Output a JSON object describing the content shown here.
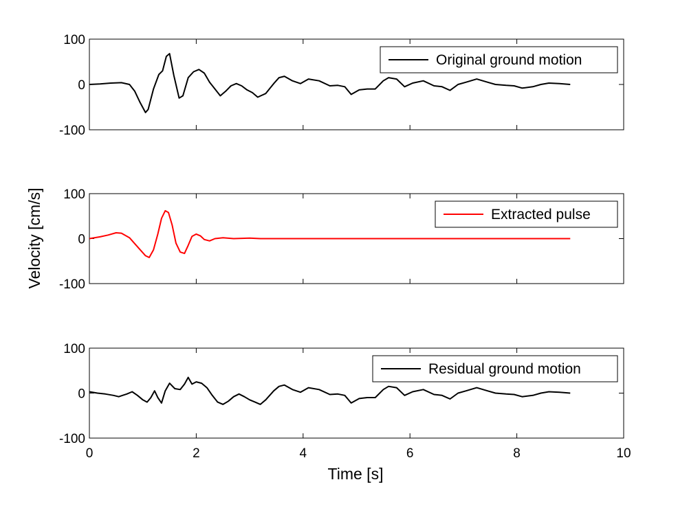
{
  "chart_data": {
    "type": "line",
    "xlabel": "Time [s]",
    "ylabel": "Velocity [cm/s]",
    "xlim": [
      0,
      10
    ],
    "xticks": [
      0,
      2,
      4,
      6,
      8,
      10
    ],
    "grid": false,
    "legend_position": "top-right",
    "panels": [
      {
        "ylim": [
          -100,
          100
        ],
        "yticks": [
          -100,
          0,
          100
        ],
        "series": [
          {
            "name": "Original ground motion",
            "color": "#000000",
            "x": [
              0,
              0.2,
              0.4,
              0.6,
              0.75,
              0.85,
              0.95,
              1.05,
              1.1,
              1.2,
              1.3,
              1.37,
              1.44,
              1.5,
              1.58,
              1.68,
              1.75,
              1.85,
              1.95,
              2.05,
              2.15,
              2.25,
              2.35,
              2.45,
              2.55,
              2.65,
              2.75,
              2.85,
              2.95,
              3.05,
              3.15,
              3.3,
              3.45,
              3.55,
              3.65,
              3.8,
              3.95,
              4.1,
              4.3,
              4.5,
              4.65,
              4.78,
              4.9,
              5.05,
              5.2,
              5.35,
              5.5,
              5.6,
              5.75,
              5.9,
              6.05,
              6.25,
              6.45,
              6.6,
              6.75,
              6.9,
              7.05,
              7.25,
              7.45,
              7.6,
              7.8,
              7.95,
              8.1,
              8.3,
              8.45,
              8.6,
              8.8,
              9.0
            ],
            "y": [
              0,
              1,
              3,
              4,
              0,
              -15,
              -40,
              -62,
              -55,
              -10,
              22,
              30,
              62,
              68,
              20,
              -30,
              -25,
              15,
              28,
              33,
              25,
              5,
              -10,
              -25,
              -15,
              -3,
              2,
              -3,
              -12,
              -18,
              -28,
              -20,
              2,
              15,
              18,
              8,
              2,
              12,
              8,
              -3,
              -2,
              -5,
              -22,
              -12,
              -10,
              -10,
              8,
              15,
              12,
              -5,
              3,
              8,
              -3,
              -5,
              -13,
              0,
              5,
              12,
              5,
              0,
              -2,
              -3,
              -8,
              -5,
              0,
              3,
              2,
              0
            ]
          }
        ]
      },
      {
        "ylim": [
          -100,
          100
        ],
        "yticks": [
          -100,
          0,
          100
        ],
        "series": [
          {
            "name": "Extracted pulse",
            "color": "#ff0000",
            "x": [
              0,
              0.2,
              0.35,
              0.5,
              0.6,
              0.75,
              0.9,
              1.05,
              1.12,
              1.2,
              1.28,
              1.35,
              1.42,
              1.48,
              1.55,
              1.62,
              1.7,
              1.78,
              1.85,
              1.92,
              2.0,
              2.08,
              2.15,
              2.25,
              2.35,
              2.5,
              2.7,
              3.0,
              3.2,
              9.0
            ],
            "y": [
              0,
              4,
              8,
              13,
              12,
              2,
              -18,
              -38,
              -42,
              -25,
              10,
              45,
              62,
              58,
              30,
              -10,
              -30,
              -33,
              -15,
              5,
              10,
              6,
              -2,
              -5,
              0,
              2,
              0,
              1,
              0,
              0
            ]
          }
        ]
      },
      {
        "ylim": [
          -100,
          100
        ],
        "yticks": [
          -100,
          0,
          100
        ],
        "series": [
          {
            "name": "Residual ground motion",
            "color": "#000000",
            "x": [
              0,
              0.15,
              0.3,
              0.45,
              0.55,
              0.62,
              0.7,
              0.8,
              0.9,
              1.0,
              1.08,
              1.15,
              1.22,
              1.28,
              1.35,
              1.42,
              1.5,
              1.6,
              1.7,
              1.78,
              1.85,
              1.92,
              2.0,
              2.1,
              2.2,
              2.3,
              2.4,
              2.5,
              2.6,
              2.7,
              2.8,
              2.9,
              3.0,
              3.1,
              3.2,
              3.3,
              3.45,
              3.55,
              3.65,
              3.8,
              3.95,
              4.1,
              4.3,
              4.5,
              4.65,
              4.78,
              4.9,
              5.05,
              5.2,
              5.35,
              5.5,
              5.6,
              5.75,
              5.9,
              6.05,
              6.25,
              6.45,
              6.6,
              6.75,
              6.9,
              7.05,
              7.25,
              7.45,
              7.6,
              7.8,
              7.95,
              8.1,
              8.3,
              8.45,
              8.6,
              8.8,
              9.0
            ],
            "y": [
              3,
              0,
              -2,
              -5,
              -8,
              -5,
              -2,
              3,
              -5,
              -15,
              -20,
              -10,
              5,
              -10,
              -22,
              5,
              22,
              10,
              8,
              20,
              35,
              20,
              25,
              22,
              12,
              -5,
              -20,
              -25,
              -18,
              -8,
              -2,
              -8,
              -15,
              -20,
              -25,
              -15,
              5,
              15,
              18,
              8,
              2,
              12,
              8,
              -3,
              -2,
              -5,
              -22,
              -12,
              -10,
              -10,
              8,
              15,
              12,
              -5,
              3,
              8,
              -3,
              -5,
              -13,
              0,
              5,
              12,
              5,
              0,
              -2,
              -3,
              -8,
              -5,
              0,
              3,
              2,
              0
            ]
          }
        ]
      }
    ]
  }
}
